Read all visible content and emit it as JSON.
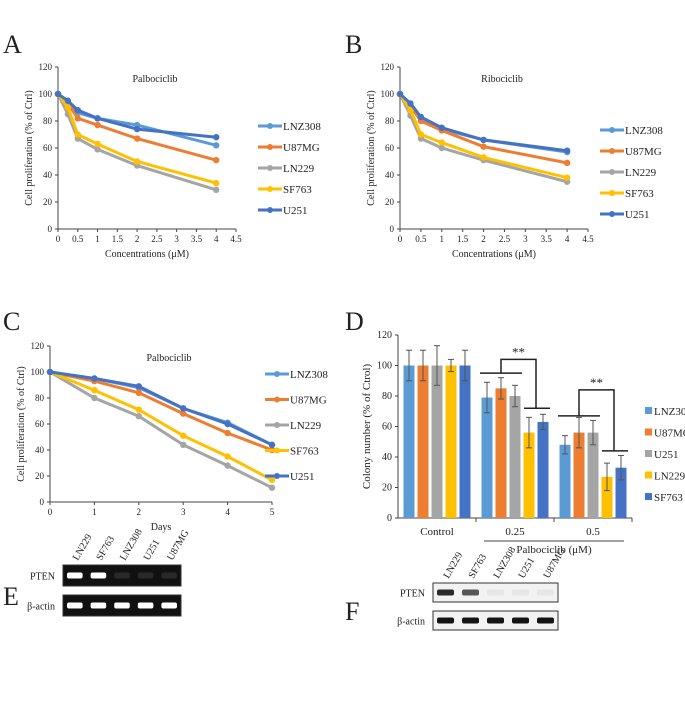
{
  "panel_labels": [
    "A",
    "B",
    "C",
    "D",
    "E",
    "F"
  ],
  "colors": {
    "LNZ308": "#5b9bd5",
    "U87MG": "#ed7d31",
    "LN229": "#a5a5a5",
    "SF763": "#ffc000",
    "U251": "#4472c4"
  },
  "chart_data": [
    {
      "id": "A",
      "type": "line",
      "title": "Palbociclib",
      "xlabel": "Concentrations (μM)",
      "ylabel": "Cell proliferation (% of Ctrl)",
      "xlim": [
        0,
        4.5
      ],
      "ylim": [
        0,
        120
      ],
      "xticks": [
        "0",
        "0.5",
        "1",
        "1.5",
        "2",
        "2.5",
        "3",
        "3.5",
        "4",
        "4.5"
      ],
      "yticks": [
        "0",
        "20",
        "40",
        "60",
        "80",
        "100",
        "120"
      ],
      "x": [
        0,
        0.25,
        0.5,
        1,
        2,
        4
      ],
      "legend": "right",
      "series": [
        {
          "name": "LNZ308",
          "values": [
            100,
            92,
            86,
            82,
            77,
            62
          ]
        },
        {
          "name": "U87MG",
          "values": [
            100,
            93,
            82,
            77,
            67,
            51
          ]
        },
        {
          "name": "LN229",
          "values": [
            100,
            85,
            67,
            59,
            47,
            29
          ]
        },
        {
          "name": "SF763",
          "values": [
            100,
            90,
            70,
            63,
            50,
            34
          ]
        },
        {
          "name": "U251",
          "values": [
            100,
            95,
            88,
            82,
            74,
            68
          ]
        }
      ]
    },
    {
      "id": "B",
      "type": "line",
      "title": "Ribociclib",
      "xlabel": "Concentrations (μM)",
      "ylabel": "Cell proliferation (% of Ctrl)",
      "xlim": [
        0,
        4.5
      ],
      "ylim": [
        0,
        120
      ],
      "xticks": [
        "0",
        "0.5",
        "1",
        "1.5",
        "2",
        "2.5",
        "3",
        "3.5",
        "4",
        "4.5"
      ],
      "yticks": [
        "0",
        "20",
        "40",
        "60",
        "80",
        "100",
        "120"
      ],
      "x": [
        0,
        0.25,
        0.5,
        1,
        2,
        4
      ],
      "legend": "right",
      "series": [
        {
          "name": "LNZ308",
          "values": [
            100,
            92,
            82,
            74,
            66,
            57
          ]
        },
        {
          "name": "U87MG",
          "values": [
            100,
            91,
            80,
            73,
            61,
            49
          ]
        },
        {
          "name": "LN229",
          "values": [
            100,
            84,
            67,
            60,
            51,
            35
          ]
        },
        {
          "name": "SF763",
          "values": [
            100,
            88,
            70,
            64,
            53,
            38
          ]
        },
        {
          "name": "U251",
          "values": [
            100,
            93,
            83,
            75,
            66,
            58
          ]
        }
      ]
    },
    {
      "id": "C",
      "type": "line",
      "title": "Palbociclib",
      "xlabel": "Days",
      "ylabel": "Cell proliferation (% of Ctrl)",
      "xlim": [
        0,
        5
      ],
      "ylim": [
        0,
        120
      ],
      "xticks": [
        "0",
        "1",
        "2",
        "3",
        "4",
        "5"
      ],
      "yticks": [
        "0",
        "20",
        "40",
        "60",
        "80",
        "100",
        "120"
      ],
      "x": [
        0,
        1,
        2,
        3,
        4,
        5
      ],
      "legend": "right",
      "series": [
        {
          "name": "LNZ308",
          "values": [
            100,
            95,
            88,
            72,
            61,
            44
          ]
        },
        {
          "name": "U87MG",
          "values": [
            100,
            93,
            84,
            68,
            53,
            40
          ]
        },
        {
          "name": "LN229",
          "values": [
            100,
            80,
            66,
            44,
            28,
            11
          ]
        },
        {
          "name": "SF763",
          "values": [
            100,
            86,
            71,
            51,
            35,
            17
          ]
        },
        {
          "name": "U251",
          "values": [
            100,
            95,
            89,
            72,
            60,
            44
          ]
        }
      ]
    },
    {
      "id": "D",
      "type": "bar",
      "title": "",
      "xlabel": "Palbociclib (μM)",
      "ylabel": "Colony number (% of Ctrol)",
      "ylim": [
        0,
        120
      ],
      "yticks": [
        "0",
        "20",
        "40",
        "60",
        "80",
        "100",
        "120"
      ],
      "categories": [
        "Control",
        "0.25",
        "0.5"
      ],
      "legend": "right",
      "significance": "**",
      "series": [
        {
          "name": "LNZ308",
          "color": "#5b9bd5",
          "values": [
            100,
            79,
            48
          ],
          "errors": [
            10,
            10,
            6
          ]
        },
        {
          "name": "U87MG",
          "color": "#ed7d31",
          "values": [
            100,
            85,
            56
          ],
          "errors": [
            10,
            7,
            10
          ]
        },
        {
          "name": "U251",
          "color": "#a5a5a5",
          "values": [
            100,
            80,
            56
          ],
          "errors": [
            13,
            7,
            8
          ]
        },
        {
          "name": "LN229",
          "color": "#ffc000",
          "values": [
            100,
            56,
            27
          ],
          "errors": [
            4,
            10,
            9
          ]
        },
        {
          "name": "SF763",
          "color": "#4472c4",
          "values": [
            100,
            63,
            33
          ],
          "errors": [
            10,
            5,
            8
          ]
        }
      ]
    }
  ],
  "blots": {
    "E": {
      "lanes": [
        "LN229",
        "SF763",
        "LNZ308",
        "U251",
        "U87MG"
      ],
      "rows": [
        {
          "label": "PTEN",
          "intensity": [
            1,
            1,
            0.1,
            0.1,
            0.1
          ]
        },
        {
          "label": "β-actin",
          "intensity": [
            1,
            1,
            1,
            1,
            1
          ]
        }
      ]
    },
    "F": {
      "lanes": [
        "LN229",
        "SF763",
        "LNZ308",
        "U251",
        "U87MG"
      ],
      "rows": [
        {
          "label": "PTEN",
          "intensity": [
            0.9,
            0.7,
            0.05,
            0.05,
            0.05
          ]
        },
        {
          "label": "β-actin",
          "intensity": [
            1,
            1,
            1,
            1,
            1
          ]
        }
      ]
    }
  }
}
